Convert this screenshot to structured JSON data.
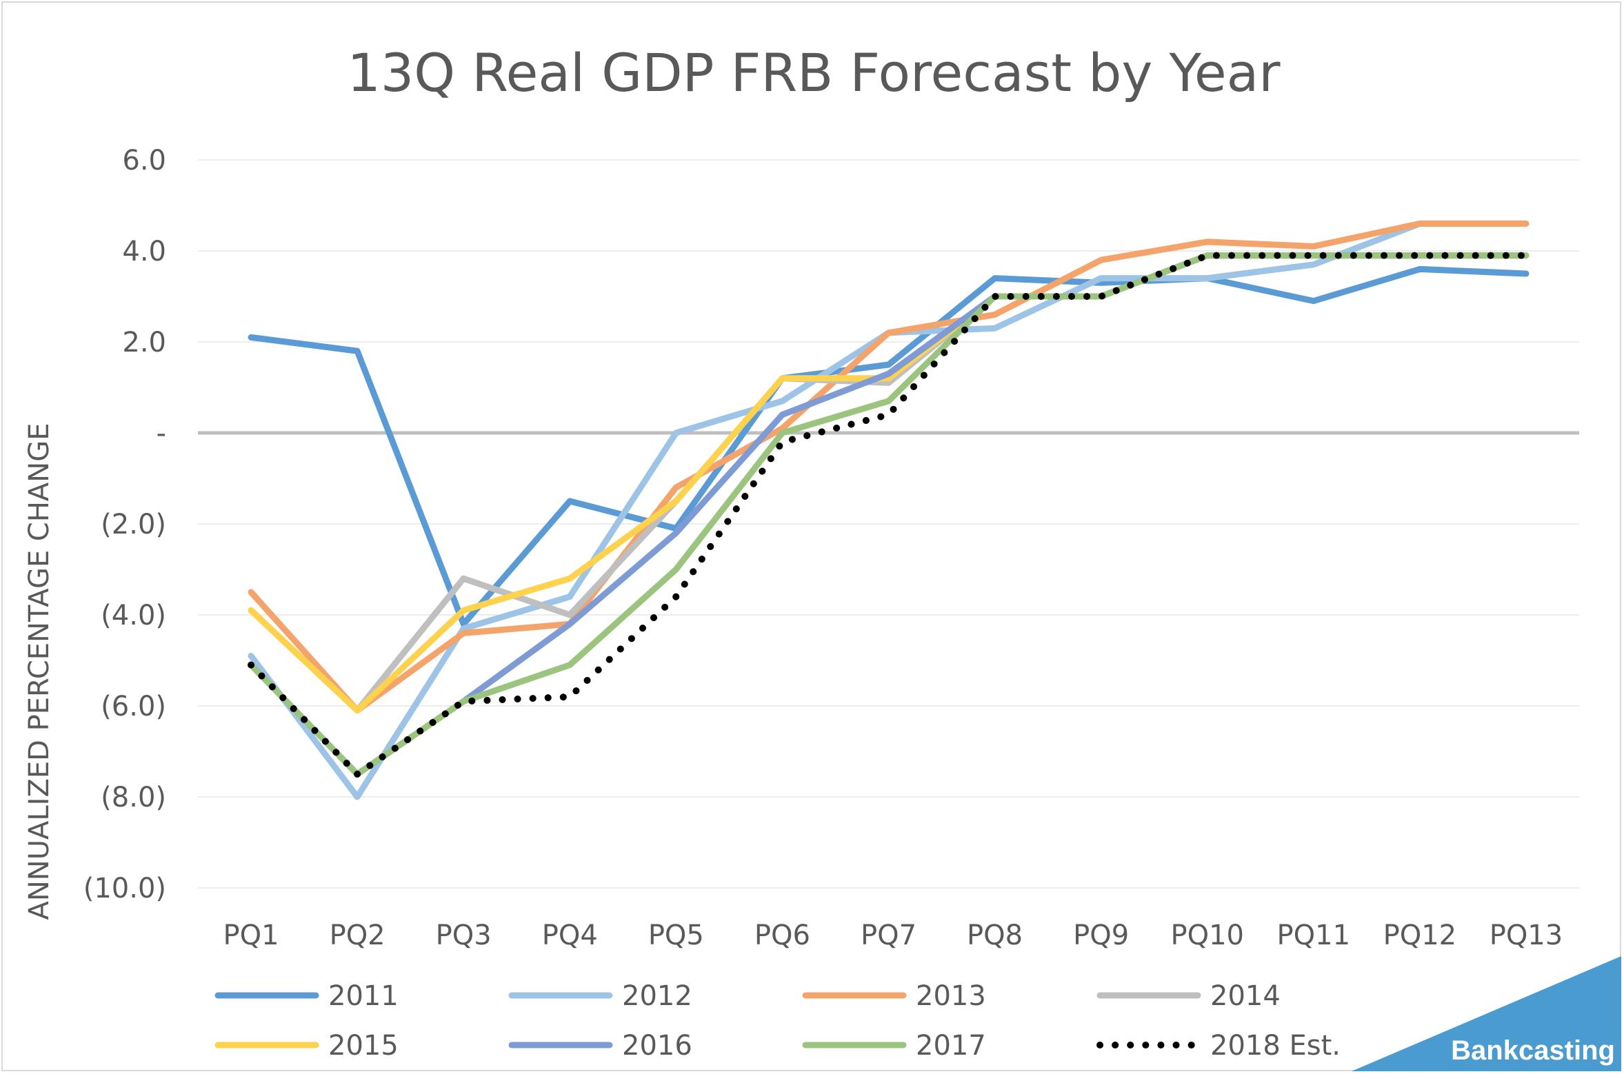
{
  "chart_data": {
    "type": "line",
    "title": "13Q Real GDP FRB Forecast by Year",
    "xlabel": "",
    "ylabel": "ANNUALIZED PERCENTAGE CHANGE",
    "categories": [
      "PQ1",
      "PQ2",
      "PQ3",
      "PQ4",
      "PQ5",
      "PQ6",
      "PQ7",
      "PQ8",
      "PQ9",
      "PQ10",
      "PQ11",
      "PQ12",
      "PQ13"
    ],
    "ylim": [
      -10,
      6
    ],
    "yticks": [
      6,
      4,
      2,
      0,
      -2,
      -4,
      -6,
      -8,
      -10
    ],
    "ytick_labels": [
      "6.0",
      "4.0",
      "2.0",
      "-",
      "(2.0)",
      "(4.0)",
      "(6.0)",
      "(8.0)",
      "(10.0)"
    ],
    "grid": true,
    "legend_position": "bottom",
    "series": [
      {
        "name": "2011",
        "color": "#5b9bd5",
        "dash": "solid",
        "values": [
          2.1,
          1.8,
          -4.2,
          -1.5,
          -2.1,
          1.2,
          1.5,
          3.4,
          3.3,
          3.4,
          2.9,
          3.6,
          3.5
        ]
      },
      {
        "name": "2012",
        "color": "#9dc3e6",
        "dash": "solid",
        "values": [
          -4.9,
          -8.0,
          -4.3,
          -3.6,
          0.0,
          0.7,
          2.2,
          2.3,
          3.4,
          3.4,
          3.7,
          4.6,
          4.6
        ]
      },
      {
        "name": "2013",
        "color": "#f4a46a",
        "dash": "solid",
        "values": [
          -3.5,
          -6.1,
          -4.4,
          -4.2,
          -1.2,
          0.1,
          2.2,
          2.6,
          3.8,
          4.2,
          4.1,
          4.6,
          4.6
        ]
      },
      {
        "name": "2014",
        "color": "#bfbfbf",
        "dash": "solid",
        "values": [
          -3.9,
          -6.1,
          -3.2,
          -4.0,
          -1.5,
          1.2,
          1.1,
          3.0,
          3.0,
          3.9,
          3.9,
          3.9,
          3.9
        ]
      },
      {
        "name": "2015",
        "color": "#ffd24d",
        "dash": "solid",
        "values": [
          -3.9,
          -6.1,
          -3.9,
          -3.2,
          -1.5,
          1.2,
          1.2,
          3.0,
          3.0,
          3.9,
          3.9,
          3.9,
          3.9
        ]
      },
      {
        "name": "2016",
        "color": "#7f9bd5",
        "dash": "solid",
        "values": [
          -5.1,
          -7.5,
          -5.9,
          -4.2,
          -2.2,
          0.4,
          1.3,
          3.0,
          3.0,
          3.9,
          3.9,
          3.9,
          3.9
        ]
      },
      {
        "name": "2017",
        "color": "#9bc57e",
        "dash": "solid",
        "values": [
          -5.1,
          -7.5,
          -5.9,
          -5.1,
          -3.0,
          0.0,
          0.7,
          3.0,
          3.0,
          3.9,
          3.9,
          3.9,
          3.9
        ]
      },
      {
        "name": "2018 Est.",
        "color": "#000000",
        "dash": "dotted",
        "values": [
          -5.1,
          -7.5,
          -5.9,
          -5.8,
          -3.6,
          -0.2,
          0.4,
          3.0,
          3.0,
          3.9,
          3.9,
          3.9,
          3.9
        ]
      }
    ]
  },
  "brand": {
    "text": "Bankcasting",
    "color": "#4a9bcf"
  }
}
